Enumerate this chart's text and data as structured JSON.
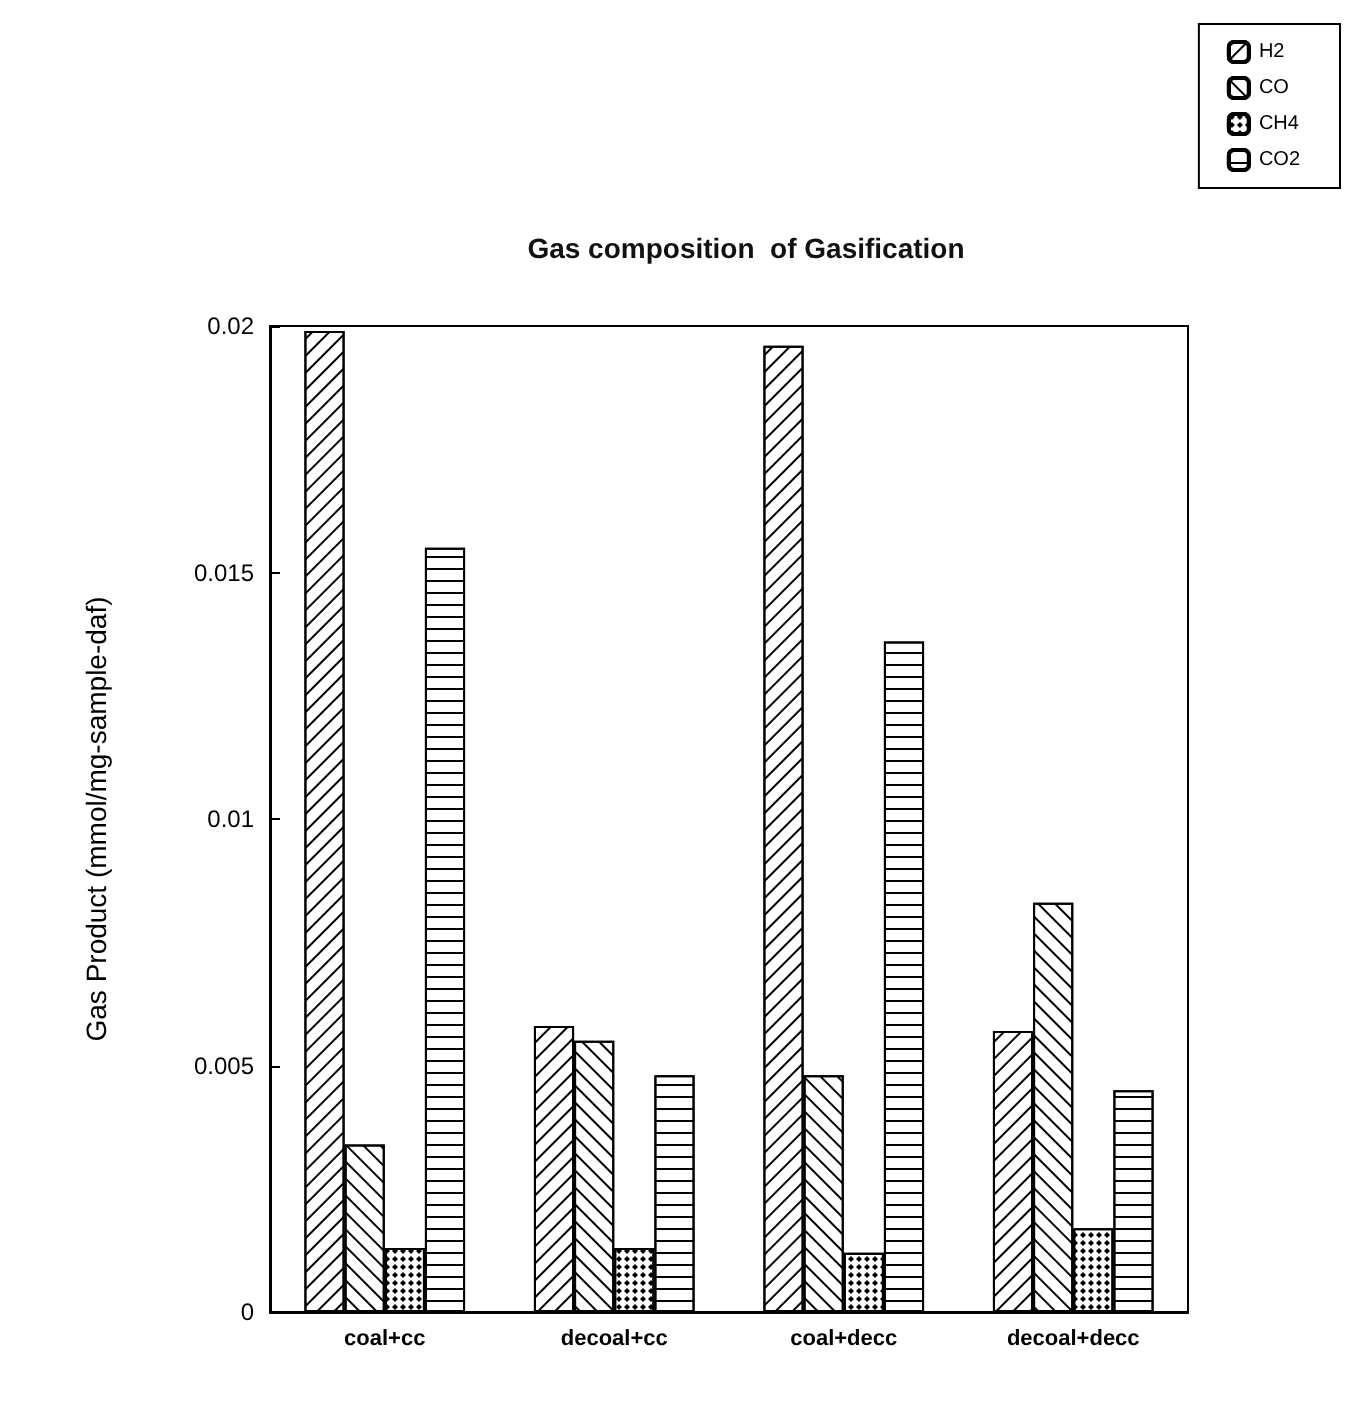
{
  "chart_data": {
    "type": "bar",
    "title": "Gas composition  of Gasification",
    "ylabel": "Gas Product (mmol/mg-sample-daf)",
    "categories": [
      "coal+cc",
      "decoal+cc",
      "coal+decc",
      "decoal+decc"
    ],
    "series": [
      {
        "name": "H2",
        "color": "#ffffff",
        "values": [
          0.0199,
          0.0058,
          0.0196,
          0.0057
        ]
      },
      {
        "name": "CO",
        "color": "#ffffff",
        "values": [
          0.0034,
          0.0055,
          0.0048,
          0.0083
        ]
      },
      {
        "name": "CH4",
        "color": "#ffffff",
        "values": [
          0.0013,
          0.0013,
          0.0012,
          0.0017
        ]
      },
      {
        "name": "CO2",
        "color": "#ffffff",
        "values": [
          0.0155,
          0.0048,
          0.0136,
          0.0045
        ]
      }
    ],
    "ylim": [
      0,
      0.02
    ],
    "yticks": [
      0,
      0.005,
      0.01,
      0.015,
      0.02
    ],
    "grid": false,
    "legend": "top right"
  }
}
